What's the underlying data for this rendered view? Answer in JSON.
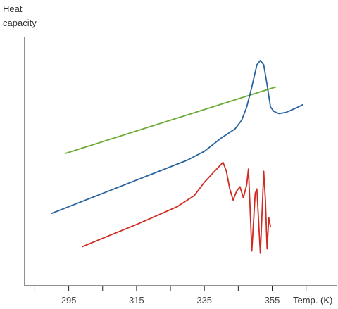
{
  "chart_data": {
    "type": "line",
    "xlabel": "Temp. (K)",
    "ylabel_line1": "Heat",
    "ylabel_line2": "capacity",
    "xlim": [
      282,
      374
    ],
    "ylim": [
      0,
      100
    ],
    "x_ticks": [
      295,
      315,
      335,
      355
    ],
    "grid": false,
    "legend": "none",
    "series": [
      {
        "color": "#6aaa35",
        "points": [
          [
            294,
            53
          ],
          [
            356,
            83
          ]
        ]
      },
      {
        "color": "#2a64a0",
        "points": [
          [
            290,
            26
          ],
          [
            300,
            32
          ],
          [
            310,
            38
          ],
          [
            320,
            44
          ],
          [
            330,
            50
          ],
          [
            335,
            54
          ],
          [
            340,
            60
          ],
          [
            344,
            64
          ],
          [
            346,
            68
          ],
          [
            347.5,
            74
          ],
          [
            349,
            83
          ],
          [
            350.5,
            93
          ],
          [
            351.5,
            95
          ],
          [
            352.5,
            93
          ],
          [
            353.5,
            84
          ],
          [
            354.5,
            74
          ],
          [
            355.5,
            72
          ],
          [
            357,
            71
          ],
          [
            359,
            71.5
          ],
          [
            362,
            73.5
          ],
          [
            364,
            75
          ]
        ]
      },
      {
        "color": "#d12a22",
        "points": [
          [
            299,
            11
          ],
          [
            307,
            16
          ],
          [
            315,
            21
          ],
          [
            321,
            25
          ],
          [
            327,
            29
          ],
          [
            332,
            34
          ],
          [
            335,
            40
          ],
          [
            338,
            45
          ],
          [
            340.5,
            49
          ],
          [
            341.5,
            45
          ],
          [
            342.5,
            37
          ],
          [
            343.5,
            32
          ],
          [
            344.5,
            36
          ],
          [
            345.5,
            38
          ],
          [
            346.5,
            33
          ],
          [
            347.5,
            39
          ],
          [
            348,
            46
          ],
          [
            348.5,
            28
          ],
          [
            349,
            9
          ],
          [
            349.5,
            22
          ],
          [
            350,
            35
          ],
          [
            350.5,
            37
          ],
          [
            351,
            22
          ],
          [
            351.5,
            8
          ],
          [
            352,
            26
          ],
          [
            352.5,
            45
          ],
          [
            353,
            32
          ],
          [
            353.5,
            10
          ],
          [
            354,
            24
          ],
          [
            354.5,
            20
          ]
        ]
      }
    ]
  }
}
